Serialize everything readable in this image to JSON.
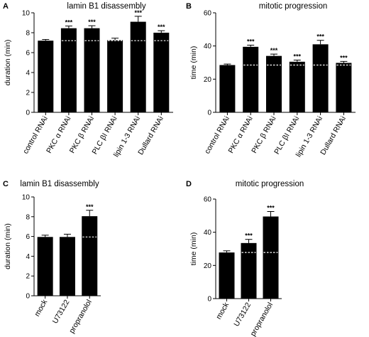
{
  "chart_data": [
    {
      "id": "A",
      "type": "bar",
      "panel_letter": "A",
      "title": "lamin B1 disassembly",
      "ylabel": "duration (min)",
      "xlabel": "",
      "ylim": [
        0,
        10
      ],
      "yticks": [
        0,
        2,
        4,
        6,
        8,
        10
      ],
      "grid": false,
      "categories": [
        "control RNAi",
        "PKC α RNAi",
        "PKC β RNAi",
        "PLC βI RNAi",
        "lipin 1-3 RNAi",
        "Dullard RNAi"
      ],
      "values": [
        7.2,
        8.45,
        8.45,
        7.25,
        9.1,
        8.0
      ],
      "errors": [
        0.12,
        0.22,
        0.25,
        0.2,
        0.55,
        0.2
      ],
      "significance": [
        "",
        "***",
        "***",
        "",
        "***",
        "***"
      ],
      "reference_line": 7.2,
      "bar_color": "#000000",
      "reference_color": "#ffffff"
    },
    {
      "id": "B",
      "type": "bar",
      "panel_letter": "B",
      "title": "mitotic progression",
      "ylabel": "time (min)",
      "xlabel": "",
      "ylim": [
        0,
        60
      ],
      "yticks": [
        0,
        20,
        40,
        60
      ],
      "grid": false,
      "categories": [
        "control RNAi",
        "PKC α RNAi",
        "PKC β RNAi",
        "PLC βI RNAi",
        "lipin 1-3 RNAi",
        "Dullard RNAi"
      ],
      "values": [
        28.5,
        39.5,
        34.0,
        30.5,
        41.0,
        29.8
      ],
      "errors": [
        0.6,
        1.0,
        1.1,
        1.0,
        2.4,
        0.9
      ],
      "significance": [
        "",
        "***",
        "***",
        "***",
        "***",
        "***"
      ],
      "reference_line": 28.5,
      "bar_color": "#000000",
      "reference_color": "#ffffff"
    },
    {
      "id": "C",
      "type": "bar",
      "panel_letter": "C",
      "title": "lamin B1 disassembly",
      "ylabel": "duration (min)",
      "xlabel": "",
      "ylim": [
        0,
        10
      ],
      "yticks": [
        0,
        2,
        4,
        6,
        8,
        10
      ],
      "grid": false,
      "categories": [
        "mock",
        "U73122",
        "propranolol"
      ],
      "values": [
        5.95,
        5.95,
        8.05
      ],
      "errors": [
        0.18,
        0.28,
        0.6
      ],
      "significance": [
        "",
        "",
        "***"
      ],
      "reference_line": 5.95,
      "bar_color": "#000000",
      "reference_color": "#ffffff"
    },
    {
      "id": "D",
      "type": "bar",
      "panel_letter": "D",
      "title": "mitotic progression",
      "ylabel": "time (min)",
      "xlabel": "",
      "ylim": [
        0,
        60
      ],
      "yticks": [
        0,
        20,
        40,
        60
      ],
      "grid": false,
      "categories": [
        "mock",
        "U73122",
        "propranolol"
      ],
      "values": [
        27.8,
        33.5,
        49.5
      ],
      "errors": [
        1.0,
        2.2,
        3.0
      ],
      "significance": [
        "",
        "***",
        "***"
      ],
      "reference_line": 27.8,
      "bar_color": "#000000",
      "reference_color": "#ffffff"
    }
  ]
}
